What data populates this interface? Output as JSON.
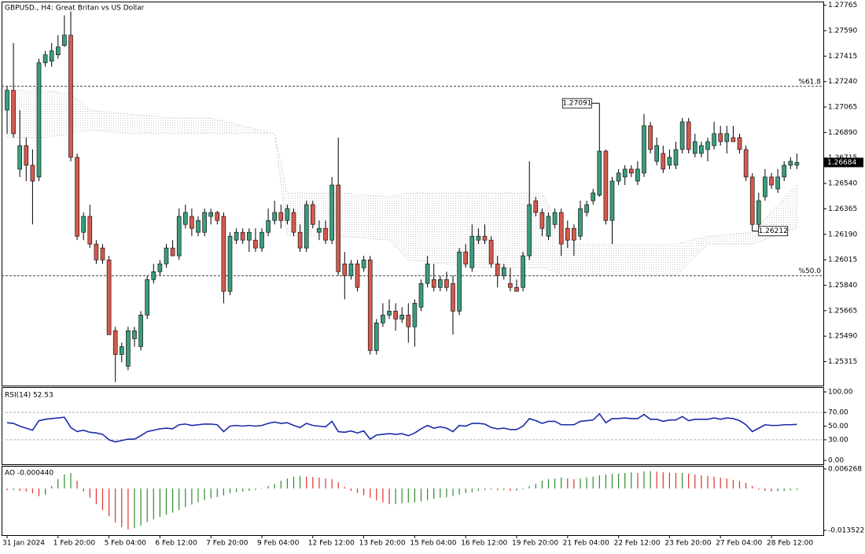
{
  "chart_data": {
    "type": "candlestick",
    "title": "GBPUSD., H4:  Great Britan vs US Dollar",
    "categories": [
      "31 Jan 2024",
      null,
      null,
      null,
      null,
      null,
      null,
      null,
      "1 Feb 20:00",
      null,
      null,
      null,
      null,
      null,
      null,
      null,
      "5 Feb 04:00",
      null,
      null,
      null,
      null,
      null,
      null,
      null,
      "6 Feb 12:00",
      null,
      null,
      null,
      null,
      null,
      null,
      null,
      "7 Feb 20:00",
      null,
      null,
      null,
      null,
      null,
      null,
      null,
      "9 Feb 04:00",
      null,
      null,
      null,
      null,
      null,
      null,
      null,
      "12 Feb 12:00",
      null,
      null,
      null,
      null,
      null,
      null,
      null,
      "13 Feb 20:00",
      null,
      null,
      null,
      null,
      null,
      null,
      null,
      "15 Feb 04:00",
      null,
      null,
      null,
      null,
      null,
      null,
      null,
      "16 Feb 12:00",
      null,
      null,
      null,
      null,
      null,
      null,
      null,
      "19 Feb 20:00",
      null,
      null,
      null,
      null,
      null,
      null,
      null,
      "21 Feb 04:00",
      null,
      null,
      null,
      null,
      null,
      null,
      null,
      "22 Feb 12:00",
      null,
      null,
      null,
      null,
      null,
      null,
      null,
      "23 Feb 20:00",
      null,
      null,
      null,
      null,
      null,
      null,
      null,
      "27 Feb 04:00",
      null,
      null,
      null,
      null,
      null,
      null,
      null,
      "28 Feb 12:00",
      null,
      null,
      null,
      null
    ],
    "candles": [
      [
        1.27044,
        1.27207,
        1.26882,
        1.2718
      ],
      [
        1.2718,
        1.27505,
        1.26855,
        1.26882
      ],
      [
        1.26638,
        1.27044,
        1.26584,
        1.268
      ],
      [
        1.268,
        1.26855,
        1.26556,
        1.26665
      ],
      [
        1.26665,
        1.26773,
        1.26258,
        1.26556
      ],
      [
        1.26584,
        1.27397,
        1.26556,
        1.27369
      ],
      [
        1.27369,
        1.27451,
        1.27342,
        1.27424
      ],
      [
        1.2738,
        1.27505,
        1.27342,
        1.27451
      ],
      [
        1.27424,
        1.27559,
        1.27397,
        1.27478
      ],
      [
        1.27489,
        1.27695,
        1.27478,
        1.27559
      ],
      [
        1.27559,
        1.27722,
        1.26692,
        1.26719
      ],
      [
        1.26719,
        1.26746,
        1.2615,
        1.26177
      ],
      [
        1.26204,
        1.2634,
        1.2615,
        1.26313
      ],
      [
        1.26313,
        1.26394,
        1.26096,
        1.26123
      ],
      [
        1.26123,
        1.2615,
        1.25987,
        1.26014
      ],
      [
        1.26096,
        1.26123,
        1.25987,
        1.26014
      ],
      [
        1.26014,
        1.26042,
        1.255,
        1.255
      ],
      [
        1.25527,
        1.25554,
        1.25174,
        1.25364
      ],
      [
        1.25364,
        1.25445,
        1.2531,
        1.25418
      ],
      [
        1.25283,
        1.25554,
        1.25256,
        1.25527
      ],
      [
        1.25472,
        1.25554,
        1.25418,
        1.25527
      ],
      [
        1.25418,
        1.25662,
        1.25391,
        1.25635
      ],
      [
        1.25635,
        1.25906,
        1.25608,
        1.25879
      ],
      [
        1.25879,
        1.25987,
        1.25852,
        1.25933
      ],
      [
        1.25933,
        1.26014,
        1.25906,
        1.25987
      ],
      [
        1.25987,
        1.26123,
        1.2596,
        1.26096
      ],
      [
        1.26096,
        1.2615,
        1.26042,
        1.26042
      ],
      [
        1.26042,
        1.26367,
        1.26014,
        1.26313
      ],
      [
        1.26258,
        1.26394,
        1.26231,
        1.2634
      ],
      [
        1.26313,
        1.26367,
        1.26177,
        1.26231
      ],
      [
        1.26204,
        1.26313,
        1.26177,
        1.26285
      ],
      [
        1.26204,
        1.26367,
        1.26177,
        1.2634
      ],
      [
        1.26313,
        1.26367,
        1.26258,
        1.2634
      ],
      [
        1.2634,
        1.26351,
        1.26258,
        1.26285
      ],
      [
        1.26313,
        1.2634,
        1.25716,
        1.25798
      ],
      [
        1.25798,
        1.26204,
        1.25771,
        1.26177
      ],
      [
        1.2615,
        1.26231,
        1.26123,
        1.26204
      ],
      [
        1.26204,
        1.26231,
        1.26123,
        1.2615
      ],
      [
        1.2615,
        1.26231,
        1.26069,
        1.26204
      ],
      [
        1.2615,
        1.26231,
        1.26069,
        1.26096
      ],
      [
        1.26096,
        1.26231,
        1.26069,
        1.26204
      ],
      [
        1.26204,
        1.26367,
        1.26177,
        1.26285
      ],
      [
        1.26285,
        1.26421,
        1.26258,
        1.2634
      ],
      [
        1.2634,
        1.26394,
        1.26231,
        1.26285
      ],
      [
        1.26285,
        1.26394,
        1.26258,
        1.26367
      ],
      [
        1.2634,
        1.26367,
        1.26177,
        1.26204
      ],
      [
        1.26204,
        1.26258,
        1.26069,
        1.26096
      ],
      [
        1.26096,
        1.26421,
        1.26069,
        1.26394
      ],
      [
        1.26394,
        1.26421,
        1.26231,
        1.26258
      ],
      [
        1.26204,
        1.26285,
        1.2615,
        1.26231
      ],
      [
        1.26231,
        1.26285,
        1.26123,
        1.2615
      ],
      [
        1.2615,
        1.26584,
        1.26123,
        1.26529
      ],
      [
        1.26529,
        1.26855,
        1.25906,
        1.25933
      ],
      [
        1.25987,
        1.26069,
        1.25743,
        1.25906
      ],
      [
        1.25906,
        1.26014,
        1.25879,
        1.25987
      ],
      [
        1.25987,
        1.26014,
        1.25798,
        1.25825
      ],
      [
        1.2596,
        1.26042,
        1.25933,
        1.26014
      ],
      [
        1.26014,
        1.26042,
        1.25364,
        1.25391
      ],
      [
        1.25391,
        1.25608,
        1.25364,
        1.25581
      ],
      [
        1.25581,
        1.25716,
        1.25554,
        1.25635
      ],
      [
        1.25635,
        1.25743,
        1.25608,
        1.25662
      ],
      [
        1.25662,
        1.25716,
        1.25527,
        1.25608
      ],
      [
        1.25608,
        1.25689,
        1.25581,
        1.25635
      ],
      [
        1.25635,
        1.25716,
        1.25445,
        1.25554
      ],
      [
        1.25554,
        1.25743,
        1.25418,
        1.25716
      ],
      [
        1.25689,
        1.25879,
        1.25662,
        1.25852
      ],
      [
        1.25852,
        1.26042,
        1.25825,
        1.25987
      ],
      [
        1.25879,
        1.25987,
        1.25798,
        1.25825
      ],
      [
        1.25825,
        1.25906,
        1.25798,
        1.25879
      ],
      [
        1.25879,
        1.25933,
        1.25798,
        1.25825
      ],
      [
        1.25852,
        1.25906,
        1.255,
        1.25662
      ],
      [
        1.25662,
        1.26096,
        1.25635,
        1.26069
      ],
      [
        1.26069,
        1.26123,
        1.2596,
        1.25987
      ],
      [
        1.2596,
        1.26258,
        1.25933,
        1.26177
      ],
      [
        1.2615,
        1.26231,
        1.26123,
        1.26177
      ],
      [
        1.26177,
        1.26258,
        1.26123,
        1.2615
      ],
      [
        1.2615,
        1.26177,
        1.2596,
        1.25987
      ],
      [
        1.25987,
        1.26042,
        1.25825,
        1.25906
      ],
      [
        1.25906,
        1.25987,
        1.25879,
        1.2596
      ],
      [
        1.25852,
        1.2596,
        1.25798,
        1.25825
      ],
      [
        1.25825,
        1.25879,
        1.25798,
        1.25798
      ],
      [
        1.25825,
        1.26069,
        1.25798,
        1.26042
      ],
      [
        1.26042,
        1.26692,
        1.26014,
        1.26394
      ],
      [
        1.26421,
        1.26448,
        1.26313,
        1.2634
      ],
      [
        1.2634,
        1.26367,
        1.26177,
        1.26231
      ],
      [
        1.26177,
        1.2634,
        1.2615,
        1.26313
      ],
      [
        1.26258,
        1.26367,
        1.26231,
        1.2634
      ],
      [
        1.2634,
        1.26367,
        1.26042,
        1.26123
      ],
      [
        1.26231,
        1.26285,
        1.26096,
        1.2615
      ],
      [
        1.26231,
        1.26258,
        1.26042,
        1.2615
      ],
      [
        1.26177,
        1.26421,
        1.2615,
        1.26367
      ],
      [
        1.2634,
        1.26421,
        1.26313,
        1.26394
      ],
      [
        1.26421,
        1.26502,
        1.26394,
        1.26475
      ],
      [
        1.26459,
        1.27091,
        1.26448,
        1.26762
      ],
      [
        1.26762,
        1.26773,
        1.26258,
        1.26285
      ],
      [
        1.26285,
        1.26584,
        1.26123,
        1.26556
      ],
      [
        1.26556,
        1.26638,
        1.26529,
        1.26611
      ],
      [
        1.26584,
        1.26665,
        1.26529,
        1.26638
      ],
      [
        1.26638,
        1.26665,
        1.26584,
        1.26611
      ],
      [
        1.26556,
        1.26692,
        1.26529,
        1.26638
      ],
      [
        1.26611,
        1.27017,
        1.26584,
        1.26936
      ],
      [
        1.26936,
        1.26963,
        1.26746,
        1.26773
      ],
      [
        1.26692,
        1.26855,
        1.26665,
        1.268
      ],
      [
        1.26746,
        1.268,
        1.26611,
        1.26638
      ],
      [
        1.26665,
        1.26773,
        1.26638,
        1.26719
      ],
      [
        1.26665,
        1.26827,
        1.26638,
        1.26773
      ],
      [
        1.26773,
        1.2699,
        1.26746,
        1.26963
      ],
      [
        1.26963,
        1.2699,
        1.26746,
        1.26773
      ],
      [
        1.26746,
        1.26882,
        1.26719,
        1.26827
      ],
      [
        1.26746,
        1.26827,
        1.26719,
        1.268
      ],
      [
        1.26773,
        1.26855,
        1.26692,
        1.26827
      ],
      [
        1.268,
        1.26963,
        1.26773,
        1.26882
      ],
      [
        1.26882,
        1.26936,
        1.268,
        1.26827
      ],
      [
        1.26827,
        1.26936,
        1.26746,
        1.26882
      ],
      [
        1.26855,
        1.26936,
        1.26827,
        1.26827
      ],
      [
        1.26855,
        1.26882,
        1.26746,
        1.26773
      ],
      [
        1.26773,
        1.268,
        1.26556,
        1.26584
      ],
      [
        1.26584,
        1.26611,
        1.26212,
        1.26258
      ],
      [
        1.26258,
        1.26475,
        1.26231,
        1.26421
      ],
      [
        1.26448,
        1.26638,
        1.26421,
        1.26584
      ],
      [
        1.26584,
        1.26611,
        1.26502,
        1.26529
      ],
      [
        1.26502,
        1.26638,
        1.26475,
        1.26584
      ],
      [
        1.26584,
        1.26692,
        1.26556,
        1.26665
      ],
      [
        1.26665,
        1.26719,
        1.26638,
        1.26692
      ],
      [
        1.26665,
        1.26746,
        1.26638,
        1.26684
      ]
    ],
    "up_color": "#3c9c7c",
    "down_color": "#d45a4e",
    "ylim": [
      1.2515,
      1.2779
    ],
    "yticks": [
      1.27765,
      {
        "value": 1.2759,
        "label": "1.27590"
      },
      1.27415,
      {
        "value": 1.2724,
        "label": "1.27240"
      },
      1.27065,
      {
        "value": 1.2689,
        "label": "1.26890"
      },
      1.26715,
      {
        "value": 1.2654,
        "label": "1.26540"
      },
      1.26365,
      {
        "value": 1.2619,
        "label": "1.26190"
      },
      1.26015,
      {
        "value": 1.2584,
        "label": "1.25840"
      },
      1.25665,
      {
        "value": 1.2549,
        "label": "1.25490"
      },
      1.25315
    ],
    "levels": [
      {
        "value": 1.27207,
        "label": "%61.8"
      },
      {
        "value": 1.25906,
        "label": "%50.0"
      }
    ],
    "annotations": [
      {
        "value": 1.27091,
        "label": "1.27091"
      },
      {
        "value": 1.26212,
        "label": "1.26212"
      }
    ],
    "cloud": {
      "x": [
        0,
        6,
        10,
        13,
        19,
        27,
        32,
        42,
        44,
        52,
        60,
        63,
        75,
        84,
        88,
        97,
        105,
        110,
        117,
        124
      ],
      "upper": [
        1.2718,
        1.2718,
        1.27153,
        1.27044,
        1.27017,
        1.2699,
        1.2699,
        1.26882,
        1.26475,
        1.26475,
        1.26448,
        1.26475,
        1.26475,
        1.26475,
        1.26123,
        1.26123,
        1.26123,
        1.26177,
        1.26204,
        1.26529
      ],
      "lower": [
        1.26855,
        1.26855,
        1.26882,
        1.26909,
        1.26882,
        1.26882,
        1.26882,
        1.26882,
        1.26177,
        1.26177,
        1.2615,
        1.26014,
        1.2596,
        1.2596,
        1.25906,
        1.25906,
        1.25906,
        1.26123,
        1.26123,
        1.26231
      ]
    },
    "rsi": {
      "label": "RSI(14) 52.53",
      "color": "#1a2ca8",
      "values": [
        55,
        54,
        50,
        47,
        44,
        58,
        60,
        61,
        62,
        63,
        48,
        42,
        44,
        41,
        40,
        38,
        30,
        27,
        29,
        31,
        31,
        36,
        42,
        44,
        46,
        47,
        46,
        52,
        53,
        51,
        52,
        53,
        53,
        52,
        42,
        50,
        51,
        50,
        51,
        50,
        51,
        54,
        56,
        54,
        55,
        51,
        48,
        54,
        51,
        50,
        49,
        57,
        42,
        41,
        43,
        40,
        43,
        31,
        37,
        38,
        39,
        38,
        39,
        36,
        40,
        46,
        51,
        47,
        49,
        47,
        42,
        51,
        50,
        54,
        54,
        53,
        48,
        46,
        47,
        45,
        45,
        50,
        61,
        58,
        54,
        57,
        57,
        52,
        52,
        52,
        57,
        58,
        59,
        68,
        55,
        61,
        61,
        62,
        61,
        61,
        67,
        60,
        60,
        57,
        59,
        59,
        64,
        58,
        60,
        60,
        60,
        62,
        60,
        62,
        61,
        58,
        52,
        42,
        47,
        52,
        51,
        51,
        52,
        52,
        52.53
      ],
      "ylim": [
        -5.75,
        106.9
      ],
      "yticks": [
        {
          "value": 100,
          "label": "100.00"
        },
        {
          "value": 70,
          "label": "70.00"
        },
        {
          "value": 50,
          "label": "50.00"
        },
        {
          "value": 30,
          "label": "30.00"
        },
        {
          "value": 0,
          "label": "0.00"
        }
      ],
      "levels": [
        70,
        30
      ]
    },
    "ao": {
      "label": "AO -0.000440",
      "up_color": "#2e8b2e",
      "down_color": "#e03030",
      "values": [
        -0.0006,
        -0.0005,
        -0.0008,
        -0.001,
        -0.0015,
        -0.0025,
        -0.002,
        0.0008,
        0.003,
        0.0045,
        0.005,
        0.0025,
        -0.001,
        -0.003,
        -0.005,
        -0.007,
        -0.009,
        -0.011,
        -0.0125,
        -0.0132,
        -0.0128,
        -0.012,
        -0.0108,
        -0.01,
        -0.0092,
        -0.0085,
        -0.0078,
        -0.007,
        -0.006,
        -0.0052,
        -0.0045,
        -0.0038,
        -0.0032,
        -0.0028,
        -0.0022,
        -0.0015,
        -0.0012,
        -0.001,
        -0.0008,
        -0.0005,
        0.0002,
        0.0008,
        0.0015,
        0.0025,
        0.0032,
        0.0038,
        0.004,
        0.0038,
        0.0037,
        0.0035,
        0.0032,
        0.003,
        0.002,
        0.0005,
        -0.0008,
        -0.0015,
        -0.0022,
        -0.003,
        -0.0038,
        -0.0045,
        -0.005,
        -0.005,
        -0.0048,
        -0.0046,
        -0.0045,
        -0.0042,
        -0.0038,
        -0.0033,
        -0.003,
        -0.0028,
        -0.0025,
        -0.002,
        -0.0015,
        -0.0012,
        -0.0008,
        -0.0005,
        -0.0004,
        -0.0006,
        -0.0005,
        -0.0008,
        -0.0007,
        -0.0003,
        0.0008,
        0.0015,
        0.0025,
        0.003,
        0.0032,
        0.0035,
        0.0033,
        0.003,
        0.0032,
        0.0035,
        0.0038,
        0.0042,
        0.0045,
        0.0047,
        0.0048,
        0.005,
        0.0052,
        0.005,
        0.0055,
        0.0056,
        0.0054,
        0.0052,
        0.0051,
        0.005,
        0.005,
        0.0048,
        0.0045,
        0.0042,
        0.004,
        0.0038,
        0.0035,
        0.0032,
        0.0028,
        0.0024,
        0.0018,
        0.0008,
        -0.0004,
        -0.0008,
        -0.001,
        -0.0009,
        -0.0008,
        -0.0006,
        -0.00044
      ],
      "ylim": [
        -0.01505,
        0.00728
      ],
      "yticks": [
        0.006268,
        -0.013522
      ]
    }
  }
}
